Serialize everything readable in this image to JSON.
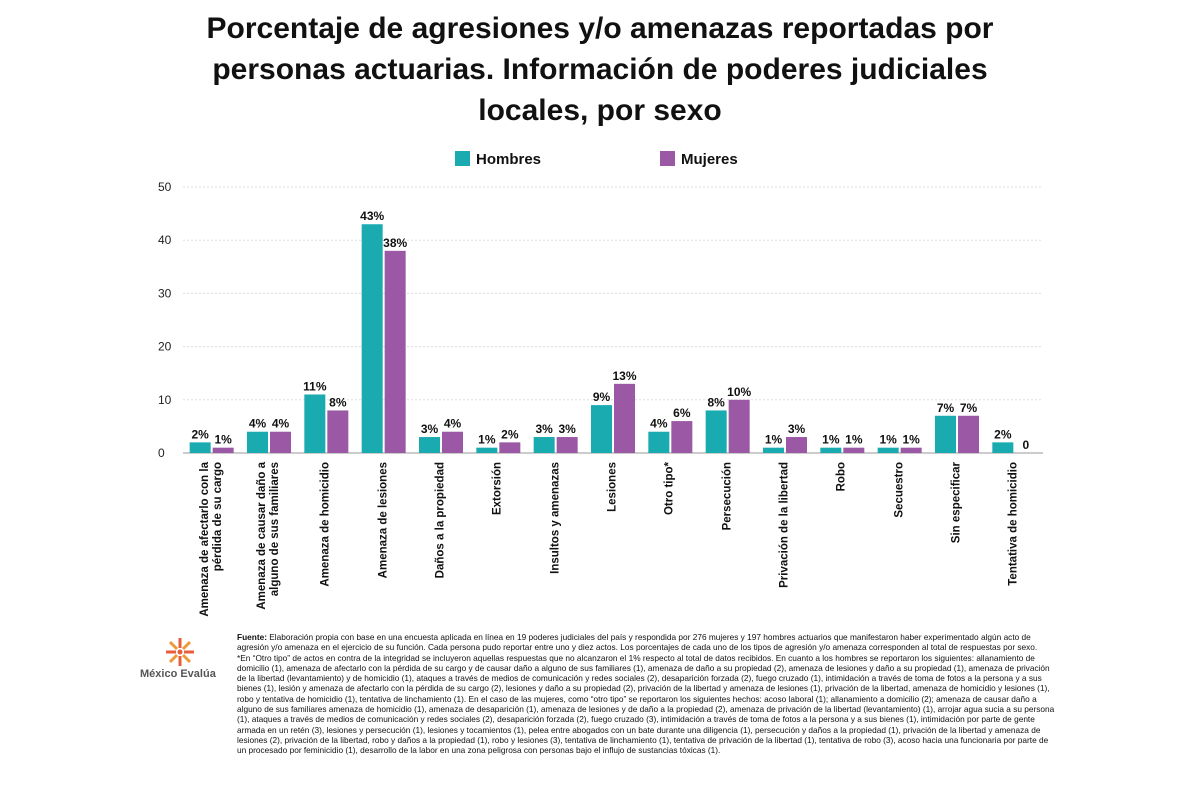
{
  "chart_data": {
    "type": "bar",
    "title": "Porcentaje de agresiones y/o amenazas reportadas por personas actuarias. Información de poderes judiciales locales, por sexo",
    "categories": [
      "Amenaza de afectarlo con la pérdida de su cargo",
      "Amenaza de causar daño a alguno de sus familiares",
      "Amenaza de homicidio",
      "Amenaza de lesiones",
      "Daños a la propiedad",
      "Extorsión",
      "Insultos y amenazas",
      "Lesiones",
      "Otro tipo*",
      "Persecución",
      "Privación de la libertad",
      "Robo",
      "Secuestro",
      "Sin especificar",
      "Tentativa de homicidio"
    ],
    "series": [
      {
        "name": "Hombres",
        "color": "#1aabb1",
        "values": [
          2,
          4,
          11,
          43,
          3,
          1,
          3,
          9,
          4,
          8,
          1,
          1,
          1,
          7,
          2
        ],
        "value_labels": [
          "2%",
          "4%",
          "11%",
          "43%",
          "3%",
          "1%",
          "3%",
          "9%",
          "4%",
          "8%",
          "1%",
          "1%",
          "1%",
          "7%",
          "2%"
        ]
      },
      {
        "name": "Mujeres",
        "color": "#9a58a5",
        "values": [
          1,
          4,
          8,
          38,
          4,
          2,
          3,
          13,
          6,
          10,
          3,
          1,
          1,
          7,
          0
        ],
        "value_labels": [
          "1%",
          "4%",
          "8%",
          "38%",
          "4%",
          "2%",
          "3%",
          "13%",
          "6%",
          "10%",
          "3%",
          "1%",
          "1%",
          "7%",
          "0"
        ]
      }
    ],
    "ylim": [
      0,
      50
    ],
    "yticks": [
      0,
      10,
      20,
      30,
      40,
      50
    ],
    "grid": true,
    "legend": "top"
  },
  "footer": {
    "logo_text": "México Evalúa",
    "source_label": "Fuente:",
    "source_text": " Elaboración propia con base en una encuesta aplicada en línea en 19 poderes judiciales del país y respondida por 276 mujeres y 197 hombres actuarios que manifestaron haber experimentado algún acto de agresión y/o amenaza en el ejercicio de su función. Cada persona pudo reportar entre uno y diez actos. Los porcentajes de cada uno de los tipos de agresión y/o amenaza corresponden al total de respuestas por sexo.",
    "note": "*En “Otro tipo” de actos en contra de la integridad se incluyeron aquellas respuestas que no alcanzaron el 1% respecto al total de datos recibidos. En cuanto a los hombres se reportaron los siguientes: allanamiento de domicilio (1), amenaza de afectarlo con la pérdida de su cargo y de causar daño a alguno de sus familiares (1), amenaza de daño a su propiedad (2), amenaza de lesiones y daño a su propiedad (1), amenaza de privación de la libertad (levantamiento) y de homicidio (1), ataques a través de medios de comunicación y redes sociales (2), desaparición forzada (2), fuego cruzado (1), intimidación a través de toma de fotos a la persona y a sus bienes (1), lesión y amenaza de afectarlo con la pérdida de su cargo (2), lesiones y daño a su propiedad (2), privación de la libertad y amenaza de lesiones (1), privación de la libertad, amenaza de homicidio y lesiones (1), robo y tentativa de homicidio (1), tentativa de linchamiento (1). En el caso de las mujeres, como “otro tipo” se reportaron los siguientes hechos: acoso laboral (1); allanamiento a domicilio (2); amenaza de causar daño a alguno de sus familiares amenaza de homicidio (1), amenaza de desaparición (1), amenaza de lesiones y de daño a la propiedad (2), amenaza de privación de la libertad (levantamiento) (1), arrojar agua sucia a su persona (1), ataques a través de medios de comunicación y redes sociales (2), desaparición forzada (2), fuego cruzado (3), intimidación a través de toma de fotos a la persona y a sus bienes (1), intimidación por parte de gente armada en un retén (3), lesiones y persecución (1), lesiones y tocamientos (1), pelea entre abogados con un bate durante una diligencia (1), persecución y daños a la propiedad (1), privación de la libertad y amenaza de lesiones (2), privación de la libertad, robo y daños a la propiedad (1), robo y lesiones (3), tentativa de linchamiento (1), tentativa de privación de la libertad (1), tentativa de robo (3), acoso hacia una funcionaria por parte de un procesado por feminicidio (1), desarrollo de la labor en una zona peligrosa con personas bajo el influjo de sustancias tóxicas (1)."
  }
}
